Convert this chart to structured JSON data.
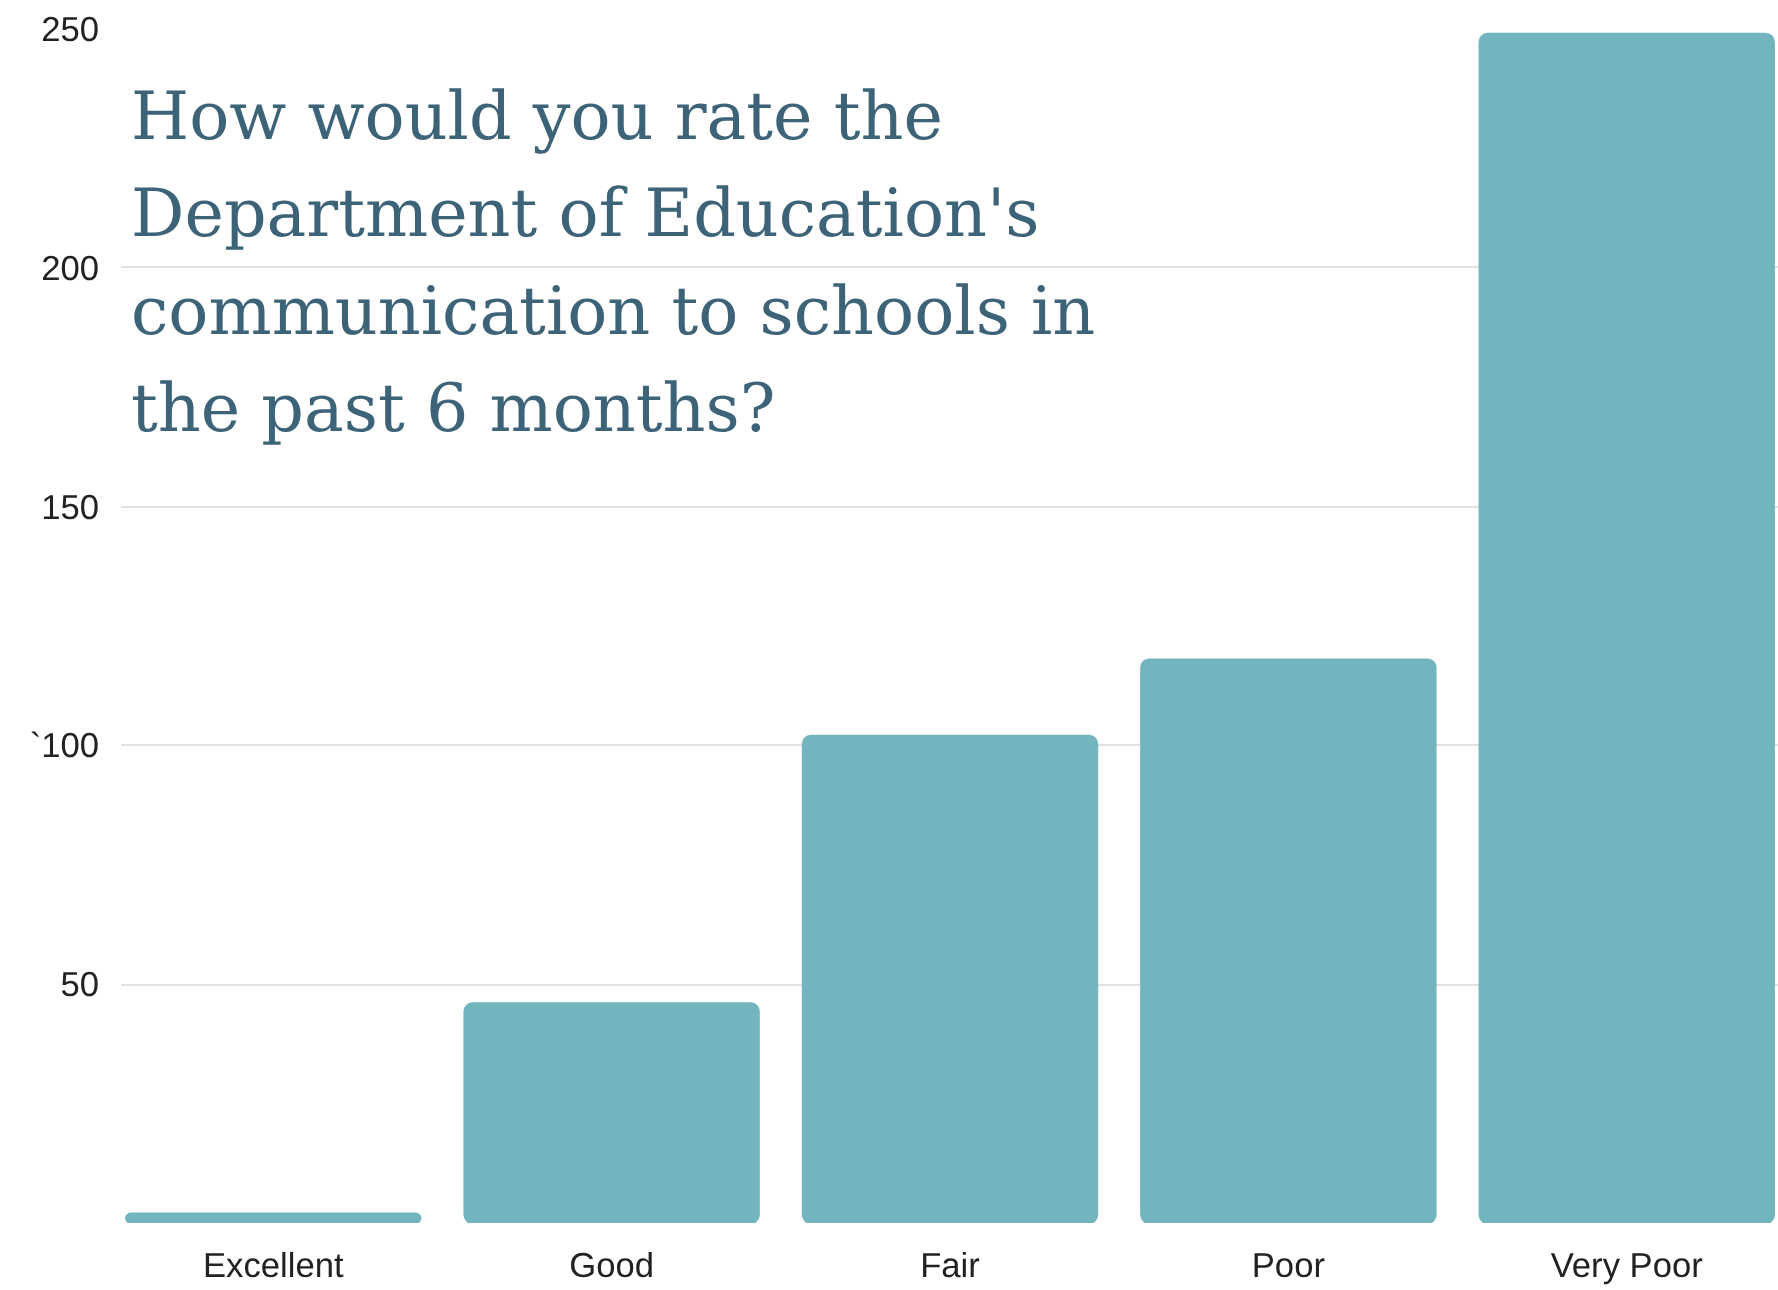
{
  "chart_data": {
    "type": "bar",
    "title": "How would you rate the Department of Education's communication to schools in the past 6 months?",
    "categories": [
      "Excellent",
      "Good",
      "Fair",
      "Poor",
      "Very Poor"
    ],
    "values": [
      2,
      46,
      102,
      118,
      249
    ],
    "color": "#72b5be",
    "ylim": [
      0,
      250
    ],
    "yticks": [
      50,
      {
        "value": 100,
        "label": "`100"
      },
      150,
      200,
      250
    ],
    "grid": "y"
  }
}
